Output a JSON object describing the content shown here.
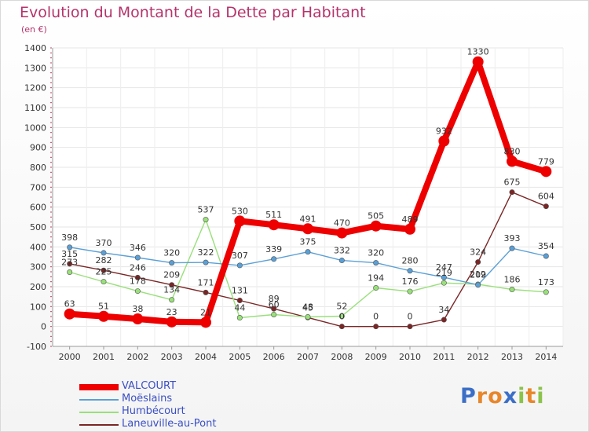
{
  "chart_data": {
    "type": "line",
    "title": "Evolution du Montant de la Dette par Habitant",
    "unit_label": "(en €)",
    "x": [
      "2000",
      "2001",
      "2002",
      "2003",
      "2004",
      "2005",
      "2006",
      "2007",
      "2008",
      "2009",
      "2010",
      "2011",
      "2012",
      "2013",
      "2014"
    ],
    "ylim": [
      -100,
      1400
    ],
    "yticks": [
      -100,
      0,
      100,
      200,
      300,
      400,
      500,
      600,
      700,
      800,
      900,
      1000,
      1100,
      1200,
      1300,
      1400
    ],
    "grid": true,
    "legend_position": "bottom-left",
    "series": [
      {
        "name": "VALCOURT",
        "color": "#ee0000",
        "values": [
          63,
          51,
          38,
          23,
          21,
          530,
          511,
          491,
          470,
          505,
          489,
          932,
          1330,
          830,
          779
        ]
      },
      {
        "name": "Moëslains",
        "color": "#5aa0d6",
        "values": [
          398,
          370,
          346,
          320,
          322,
          307,
          339,
          375,
          332,
          320,
          280,
          247,
          209,
          393,
          354
        ]
      },
      {
        "name": "Humbécourt",
        "color": "#99e07a",
        "values": [
          273,
          225,
          178,
          134,
          537,
          44,
          60,
          48,
          52,
          194,
          176,
          219,
          212,
          186,
          173
        ]
      },
      {
        "name": "Laneuville-au-Pont",
        "color": "#7a2626",
        "values": [
          315,
          282,
          246,
          209,
          171,
          131,
          89,
          45,
          0,
          0,
          0,
          34,
          324,
          675,
          604
        ]
      }
    ]
  },
  "logo": {
    "text": "Proxiti",
    "letters": [
      "P",
      "r",
      "o",
      "x",
      "i",
      "t",
      "i"
    ],
    "colors": [
      "#3b6fc7",
      "#e8862a",
      "#e8862a",
      "#3b6fc7",
      "#8bc34a",
      "#e8862a",
      "#8bc34a"
    ]
  }
}
